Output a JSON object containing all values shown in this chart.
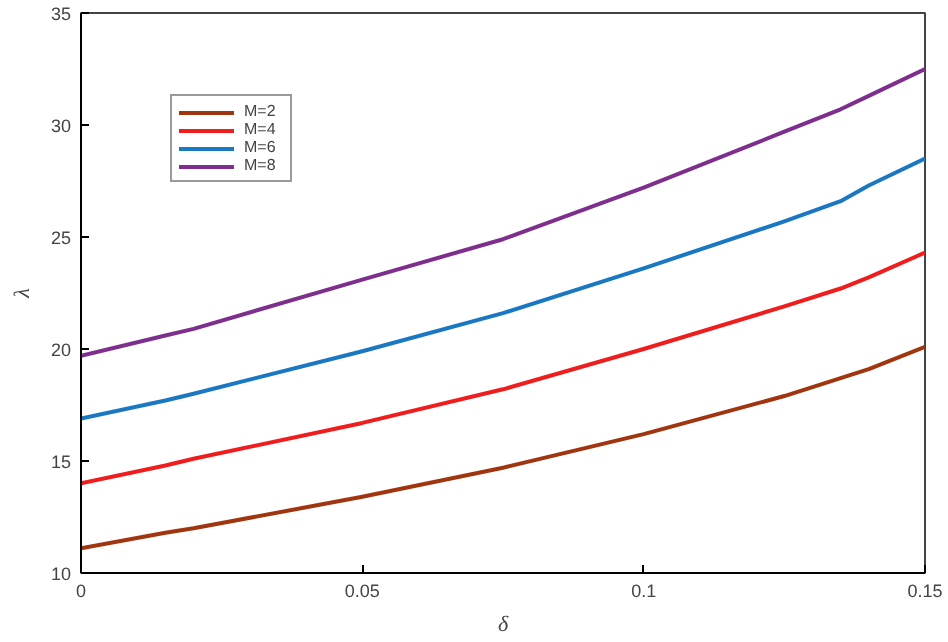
{
  "chart_data": {
    "type": "line",
    "xlabel": "δ",
    "ylabel": "λ",
    "x": [
      0,
      0.015,
      0.02,
      0.05,
      0.075,
      0.1,
      0.125,
      0.135,
      0.14,
      0.15
    ],
    "xlim": [
      0,
      0.15
    ],
    "xticks": [
      0,
      0.05,
      0.1,
      0.15
    ],
    "ylim": [
      10,
      35
    ],
    "yticks": [
      10,
      15,
      20,
      25,
      30,
      35
    ],
    "grid": false,
    "legend": "top left",
    "marker": "none",
    "line_style": "solid",
    "series": [
      {
        "name": "M=2",
        "color": "#a0350f",
        "values": [
          11.1,
          11.8,
          12.0,
          13.4,
          14.7,
          16.2,
          17.9,
          18.7,
          19.1,
          20.1
        ]
      },
      {
        "name": "M=4",
        "color": "#ef1d1d",
        "values": [
          14.0,
          14.8,
          15.1,
          16.7,
          18.2,
          20.0,
          21.9,
          22.7,
          23.2,
          24.3
        ]
      },
      {
        "name": "M=6",
        "color": "#1a78c2",
        "values": [
          16.9,
          17.7,
          18.0,
          19.9,
          21.6,
          23.6,
          25.7,
          26.6,
          27.3,
          28.5
        ]
      },
      {
        "name": "M=8",
        "color": "#7e2f8e",
        "values": [
          19.7,
          20.6,
          20.9,
          23.1,
          24.9,
          27.2,
          29.7,
          30.7,
          31.3,
          32.5
        ]
      }
    ]
  }
}
